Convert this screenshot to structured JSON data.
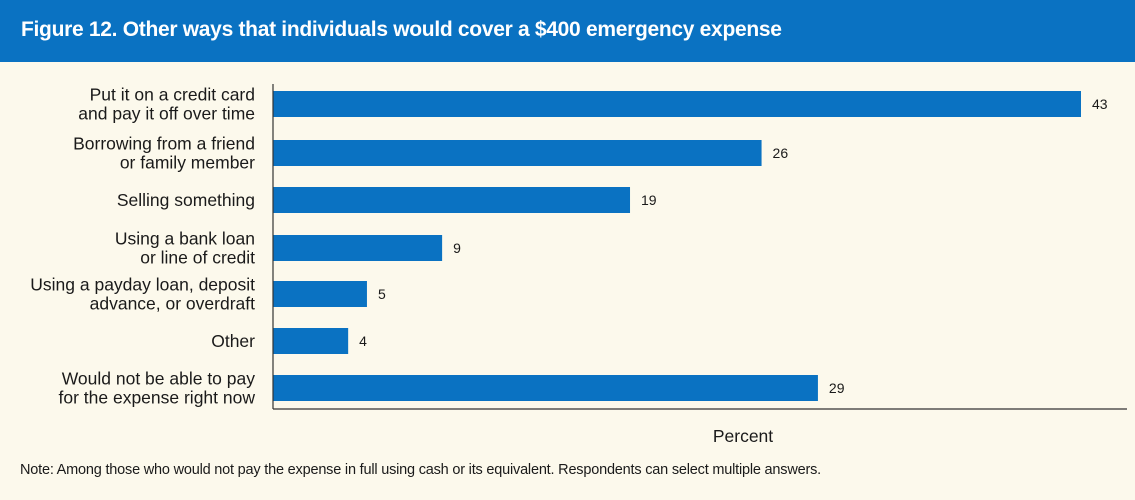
{
  "header": {
    "title": "Figure 12. Other ways that individuals would cover a $400 emergency expense"
  },
  "note": "Note: Among those who would not pay the expense in full using cash or its equivalent. Respondents can select multiple answers.",
  "colors": {
    "header_bg": "#0a72c2",
    "bar": "#0a72c2",
    "panel_bg": "#fcf9ec",
    "axis": "#333333"
  },
  "chart_data": {
    "type": "bar",
    "orientation": "horizontal",
    "categories": [
      [
        "Put it on a credit card",
        "and pay it off over time"
      ],
      [
        "Borrowing from a friend",
        "or family member"
      ],
      [
        "Selling something"
      ],
      [
        "Using a bank loan",
        "or line of credit"
      ],
      [
        "Using a payday loan, deposit",
        "advance, or overdraft"
      ],
      [
        "Other"
      ],
      [
        "Would not be able to pay",
        "for the expense right now"
      ]
    ],
    "values": [
      43,
      26,
      19,
      9,
      5,
      4,
      29
    ],
    "xlabel": "Percent",
    "xlim": [
      0,
      45
    ],
    "grid": false,
    "data_labels": true
  }
}
